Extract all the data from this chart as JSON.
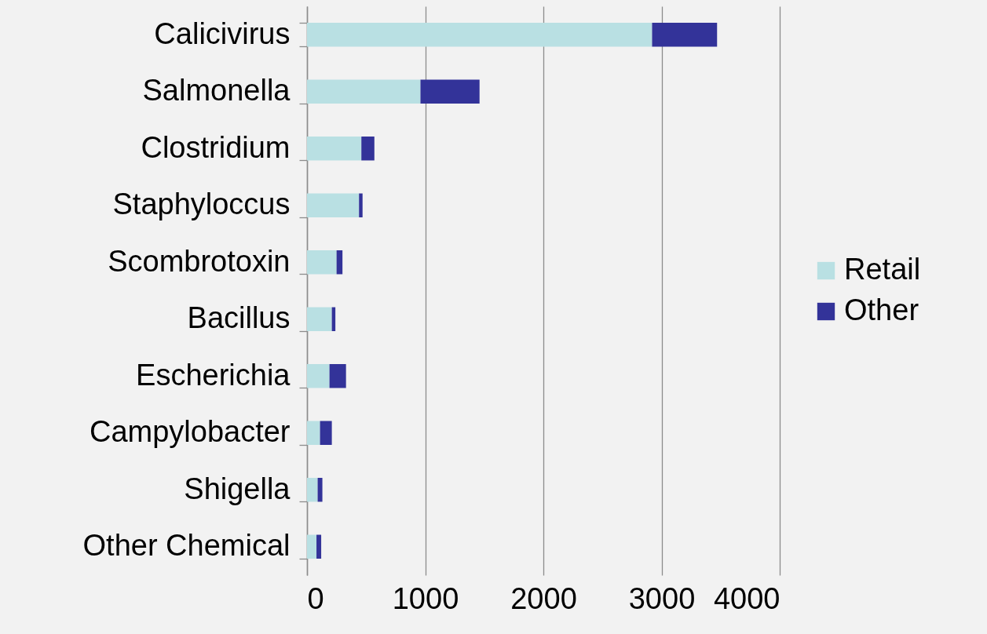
{
  "chart_data": {
    "type": "bar",
    "orientation": "horizontal",
    "stacked": true,
    "categories": [
      "Calicivirus",
      "Salmonella",
      "Clostridium",
      "Staphyloccus",
      "Scombrotoxin",
      "Bacillus",
      "Escherichia",
      "Campylobacter",
      "Shigella",
      "Other Chemical"
    ],
    "series": [
      {
        "name": "Retail",
        "color": "#b9e0e3",
        "values": [
          2920,
          960,
          460,
          440,
          250,
          210,
          190,
          110,
          90,
          80
        ]
      },
      {
        "name": "Other",
        "color": "#333399",
        "values": [
          550,
          500,
          110,
          30,
          50,
          30,
          140,
          100,
          40,
          40
        ]
      }
    ],
    "xlim": [
      0,
      4000
    ],
    "xticks": [
      0,
      1000,
      2000,
      3000,
      4000
    ],
    "grid": "x",
    "legend": "right"
  }
}
